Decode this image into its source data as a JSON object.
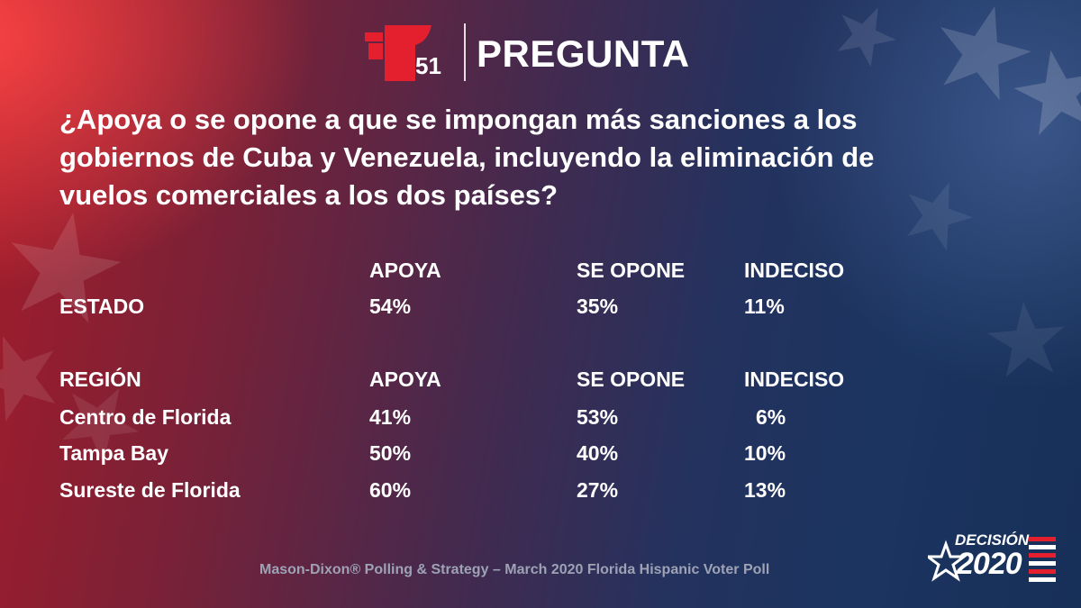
{
  "header": {
    "brand_number": "51",
    "title": "PREGUNTA"
  },
  "question": "¿Apoya o se opone a que se impongan más sanciones a los gobiernos de Cuba y Venezuela, incluyendo la eliminación de vuelos comerciales a los dos países?",
  "estado_table": {
    "row_header": "",
    "columns": [
      "APOYA",
      "SE OPONE",
      "INDECISO"
    ],
    "rows": [
      {
        "label": "ESTADO",
        "values": [
          "54%",
          "35%",
          "11%"
        ]
      }
    ]
  },
  "region_table": {
    "row_header": "REGIÓN",
    "columns": [
      "APOYA",
      "SE OPONE",
      "INDECISO"
    ],
    "rows": [
      {
        "label": "Centro de Florida",
        "values": [
          "41%",
          "53%",
          "6%"
        ]
      },
      {
        "label": "Tampa Bay",
        "values": [
          "50%",
          "40%",
          "10%"
        ]
      },
      {
        "label": "Sureste de Florida",
        "values": [
          "60%",
          "27%",
          "13%"
        ]
      }
    ]
  },
  "source": "Mason-Dixon® Polling & Strategy – March 2020 Florida Hispanic Voter Poll",
  "badge": {
    "top": "DECISIÓN",
    "year": "2020"
  },
  "colors": {
    "logo_red": "#e4202f",
    "source_gray": "#9da2b5"
  },
  "icons": {
    "logo": "telemundo-t-icon",
    "badge_star": "star-icon",
    "badge_flag": "flag-stripes-icon"
  }
}
